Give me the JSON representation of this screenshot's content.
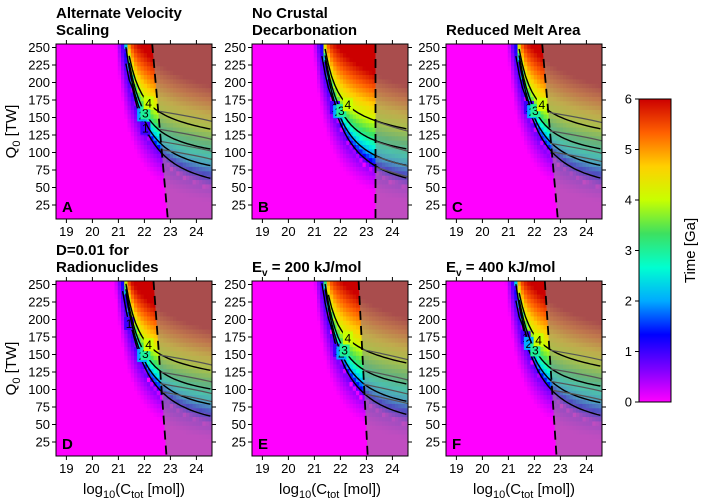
{
  "chart_data": {
    "type": "heatmap",
    "colorbar": {
      "label": "Time [Ga]",
      "range": [
        0,
        6
      ],
      "ticks": [
        "0",
        "1",
        "2",
        "3",
        "4",
        "5",
        "6"
      ],
      "colors": [
        "#ff00ff",
        "#7a00ff",
        "#0000ff",
        "#00aaff",
        "#00ffd0",
        "#3de060",
        "#c8ff00",
        "#ffd000",
        "#ff6000",
        "#cc0000"
      ]
    },
    "x_axis": {
      "label_main": "log",
      "label_sub": "10",
      "label_rest": "(C",
      "label_sub2": "tot",
      "label_end": " [mol])",
      "range": [
        18.6,
        24.6
      ],
      "ticks": [
        "19",
        "20",
        "21",
        "22",
        "23",
        "24"
      ],
      "tick_values": [
        19,
        20,
        21,
        22,
        23,
        24
      ]
    },
    "y_axis": {
      "label_main": "Q",
      "label_sub": "0",
      "label_end": " [TW]",
      "range": [
        5,
        255
      ],
      "ticks": [
        "25",
        "50",
        "75",
        "100",
        "125",
        "150",
        "175",
        "200",
        "225",
        "250"
      ],
      "tick_values": [
        25,
        50,
        75,
        100,
        125,
        150,
        175,
        200,
        225,
        250
      ]
    },
    "contour_levels": [
      "1",
      "2",
      "3",
      "4"
    ],
    "panels": [
      {
        "letter": "A",
        "title1": "Alternate Velocity",
        "title2": "Scaling",
        "x0": 20.2,
        "scale": 1.0,
        "dashed_line": [
          [
            22.3,
            250
          ],
          [
            22.9,
            5
          ]
        ],
        "contour_label_x": [
          22.1,
          21.9,
          22.0,
          22.2
        ]
      },
      {
        "letter": "B",
        "title1": "No Crustal",
        "title2": "Decarbonation",
        "x0": 20.25,
        "scale": 1.0,
        "dashed_line": [
          [
            23.35,
            250
          ],
          [
            23.35,
            5
          ]
        ],
        "contour_label_x": [
          21.8,
          21.9,
          22.0,
          22.3
        ]
      },
      {
        "letter": "C",
        "title1": "",
        "title2": "Reduced Melt Area",
        "x0": 20.25,
        "scale": 1.0,
        "dashed_line": [
          [
            22.3,
            250
          ],
          [
            22.9,
            5
          ]
        ],
        "contour_label_x": [
          21.8,
          21.9,
          22.0,
          22.3
        ]
      },
      {
        "letter": "D",
        "title1": "D=0.01 for",
        "title2": "Radionuclides",
        "x0": 20.15,
        "scale": 1.05,
        "dashed_line": [
          [
            22.35,
            250
          ],
          [
            22.85,
            5
          ]
        ],
        "contour_label_x": [
          21.4,
          21.9,
          22.0,
          22.2
        ]
      },
      {
        "letter": "E",
        "title1": "",
        "title2": "E_v = 200 kJ/mol",
        "title_main": "E",
        "title_sub": "v",
        "title_rest": " = 200 kJ/mol",
        "x0": 20.3,
        "scale": 0.97,
        "dashed_line": [
          [
            22.7,
            250
          ],
          [
            23.05,
            5
          ]
        ],
        "contour_label_x": [
          21.9,
          22.0,
          22.2,
          22.3
        ]
      },
      {
        "letter": "F",
        "title1": "",
        "title2": "E_v = 400 kJ/mol",
        "title_main": "E",
        "title_sub": "v",
        "title_rest": " = 400 kJ/mol",
        "x0": 20.2,
        "scale": 1.0,
        "dashed_line": [
          [
            22.4,
            250
          ],
          [
            22.85,
            5
          ]
        ],
        "contour_label_x": [
          21.7,
          21.8,
          22.1,
          22.2
        ]
      }
    ]
  }
}
